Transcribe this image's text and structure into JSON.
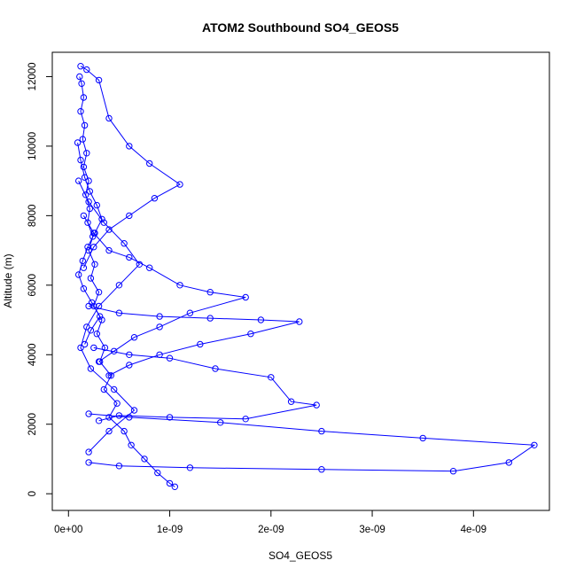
{
  "chart_data": {
    "type": "line",
    "title": "ATOM2 Southbound SO4_GEOS5",
    "xlabel": "SO4_GEOS5",
    "ylabel": "Altitude (m)",
    "xlim": [
      -1.6e-10,
      4.75e-09
    ],
    "ylim": [
      -480,
      12700
    ],
    "x_ticks": [
      0,
      1e-09,
      2e-09,
      3e-09,
      4e-09
    ],
    "x_tick_labels": [
      "0e+00",
      "1e-09",
      "2e-09",
      "3e-09",
      "4e-09"
    ],
    "y_ticks": [
      0,
      2000,
      4000,
      6000,
      8000,
      10000,
      12000
    ],
    "y_tick_labels": [
      "0",
      "2000",
      "4000",
      "6000",
      "8000",
      "10000",
      "12000"
    ],
    "grid": false,
    "legend": "none",
    "series_color": "#0000ff",
    "marker": "open-circle",
    "series": [
      {
        "x": [
          1.1e-10,
          1.3e-10,
          1.5e-10,
          1.2e-10,
          1.6e-10,
          1.4e-10,
          1.8e-10,
          1.5e-10,
          2e-10,
          1.7e-10,
          2.1e-10,
          1.9e-10,
          2.4e-10,
          2e-10,
          2.6e-10,
          2.2e-10,
          3e-10,
          2.5e-10,
          3.3e-10,
          2.8e-10,
          3.6e-10,
          3.1e-10,
          4.2e-10,
          3.5e-10,
          4.8e-10,
          4e-10,
          5.5e-10,
          6.2e-10,
          7.5e-10,
          8.8e-10,
          1e-09,
          1.05e-09
        ],
        "y": [
          12000,
          11800,
          11400,
          11000,
          10600,
          10200,
          9800,
          9400,
          9000,
          8600,
          8200,
          7800,
          7400,
          7000,
          6600,
          6200,
          5800,
          5400,
          5000,
          4600,
          4200,
          3800,
          3400,
          3000,
          2600,
          2200,
          1800,
          1400,
          1000,
          600,
          300,
          200
        ]
      },
      {
        "x": [
          1.5e-10,
          2.5e-10,
          4e-10,
          6e-10,
          8e-10,
          1.1e-09,
          1.4e-09,
          1.75e-09,
          1.2e-09,
          9e-10,
          6.5e-10,
          4.5e-10,
          3e-10
        ],
        "y": [
          8000,
          7500,
          7000,
          6800,
          6500,
          6000,
          5800,
          5650,
          5200,
          4800,
          4500,
          4100,
          3800
        ]
      },
      {
        "x": [
          2e-10,
          5e-10,
          9e-10,
          1.4e-09,
          1.9e-09,
          2.28e-09,
          1.8e-09,
          1.3e-09,
          9e-10,
          6e-10,
          4e-10
        ],
        "y": [
          5400,
          5200,
          5100,
          5050,
          5000,
          4950,
          4600,
          4300,
          4000,
          3700,
          3400
        ]
      },
      {
        "x": [
          2.5e-10,
          6e-10,
          1e-09,
          1.45e-09,
          2e-09,
          2.2e-09,
          2.45e-09,
          1.75e-09,
          1e-09,
          5e-10,
          3e-10
        ],
        "y": [
          4200,
          4000,
          3900,
          3600,
          3350,
          2650,
          2550,
          2150,
          2200,
          2250,
          2100
        ]
      },
      {
        "x": [
          2e-10,
          6e-10,
          1.5e-09,
          2.5e-09,
          3.5e-09,
          4.6e-09,
          4.35e-09,
          3.8e-09,
          2.5e-09,
          1.2e-09,
          5e-10,
          2e-10
        ],
        "y": [
          2300,
          2200,
          2050,
          1800,
          1600,
          1400,
          900,
          650,
          700,
          750,
          800,
          900
        ]
      },
      {
        "x": [
          1e-10,
          2e-10,
          3.5e-10,
          5.5e-10,
          7e-10,
          5e-10,
          3e-10,
          1.8e-10,
          1.2e-10,
          2.2e-10,
          4.5e-10,
          6.5e-10,
          4e-10,
          2e-10
        ],
        "y": [
          9000,
          8400,
          7800,
          7200,
          6600,
          6000,
          5400,
          4800,
          4200,
          3600,
          3000,
          2400,
          1800,
          1200
        ]
      },
      {
        "x": [
          1.2e-10,
          1.8e-10,
          3e-10,
          4e-10,
          6e-10,
          8e-10,
          1.1e-09,
          8.5e-10,
          6e-10,
          4e-10,
          2.5e-10,
          1.5e-10
        ],
        "y": [
          12300,
          12200,
          11900,
          10800,
          10000,
          9500,
          8900,
          8500,
          8000,
          7600,
          7100,
          6500
        ]
      },
      {
        "x": [
          9e-11,
          1.2e-10,
          1.6e-10,
          2.1e-10,
          2.8e-10,
          3.3e-10,
          2.6e-10,
          1.9e-10,
          1.4e-10,
          1e-10,
          1.5e-10,
          2.3e-10,
          3.1e-10,
          2.2e-10,
          1.6e-10
        ],
        "y": [
          10100,
          9600,
          9100,
          8700,
          8300,
          7900,
          7500,
          7100,
          6700,
          6300,
          5900,
          5500,
          5100,
          4700,
          4300
        ]
      }
    ]
  }
}
